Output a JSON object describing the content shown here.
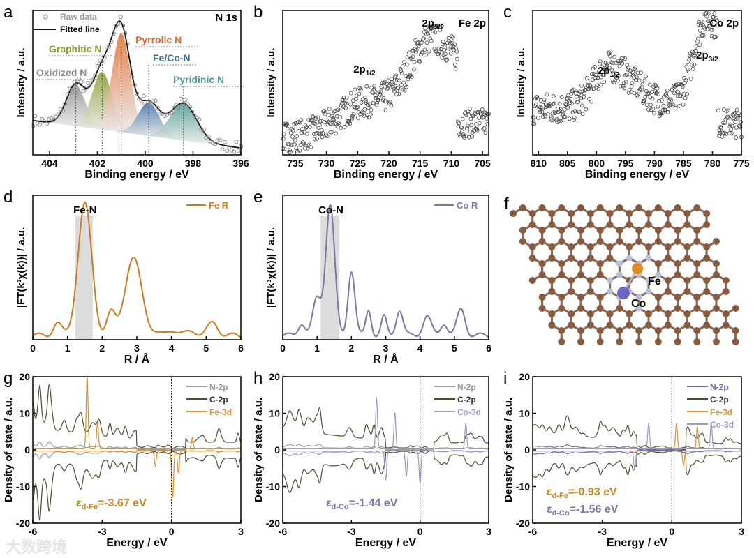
{
  "watermark": "大数跨境",
  "chart_data": [
    {
      "id": "a",
      "panel_label": "a",
      "type": "scatter",
      "title": "N 1s",
      "xlabel": "Binding energy / eV",
      "ylabel": "Intensity / a.u.",
      "xlim": [
        404.7,
        396
      ],
      "ylim": [
        -0.05,
        1.0
      ],
      "xticks": [
        404,
        402,
        400,
        398,
        396
      ],
      "legend": [
        "Raw data",
        "Fitted line"
      ],
      "legend_position": "top-left",
      "components": [
        {
          "name": "Oxidized N",
          "center": 402.9,
          "height": 0.3,
          "width": 0.4,
          "color": "#8c8c8c"
        },
        {
          "name": "Graphitic N",
          "center": 401.8,
          "height": 0.42,
          "width": 0.42,
          "color": "#8a9a2c"
        },
        {
          "name": "Pyrrolic N",
          "center": 401.0,
          "height": 0.72,
          "width": 0.38,
          "color": "#e06a2c"
        },
        {
          "name": "Fe/Co-N",
          "center": 399.85,
          "height": 0.24,
          "width": 0.45,
          "color": "#3d6fa8"
        },
        {
          "name": "Pyridinic N",
          "center": 398.4,
          "height": 0.27,
          "width": 0.55,
          "color": "#4a9a8c"
        }
      ],
      "baseline": [
        0.2,
        0.0
      ]
    },
    {
      "id": "b",
      "panel_label": "b",
      "type": "scatter",
      "title": "Fe 2p",
      "xlabel": "Binding energy / eV",
      "ylabel": "Intensity / a.u.",
      "xlim": [
        737,
        704
      ],
      "ylim": [
        0,
        1
      ],
      "xticks": [
        735,
        730,
        725,
        720,
        715,
        710,
        705
      ],
      "peaks": [
        {
          "label": "2p",
          "sub": "1/2",
          "center": 724,
          "height": 0.2,
          "width": 4
        },
        {
          "label": "2p",
          "sub": "3/2",
          "center": 713,
          "height": 0.55,
          "width": 3.5
        }
      ],
      "baseline": [
        0.12,
        0.22
      ],
      "cutoff": 709
    },
    {
      "id": "c",
      "panel_label": "c",
      "type": "scatter",
      "title": "Co 2p",
      "xlabel": "Binding energy / eV",
      "ylabel": "Intensity / a.u.",
      "xlim": [
        811,
        775
      ],
      "ylim": [
        0,
        1
      ],
      "xticks": [
        810,
        805,
        800,
        795,
        790,
        785,
        780,
        775
      ],
      "peaks": [
        {
          "label": "2p",
          "sub": "1/2",
          "center": 798,
          "height": 0.28,
          "width": 2.5
        },
        {
          "label": "2p",
          "sub": "3/2",
          "center": 781,
          "height": 0.6,
          "width": 2.2
        }
      ],
      "baseline": [
        0.32,
        0.35
      ],
      "cutoff": 779
    },
    {
      "id": "d",
      "panel_label": "d",
      "type": "line",
      "xlabel": "R / Å",
      "ylabel": "|FT(k³χ(k))| / a.u.",
      "xlim": [
        0,
        6
      ],
      "ylim": [
        0,
        1.1
      ],
      "xticks": [
        0,
        1,
        2,
        3,
        4,
        5,
        6
      ],
      "series": [
        {
          "name": "Fe R",
          "color": "#d07a1c"
        }
      ],
      "annotation": "Fe-N",
      "shaded_range": [
        1.23,
        1.73
      ],
      "peaks": [
        [
          0.7,
          0.1,
          0.12
        ],
        [
          1.5,
          1.0,
          0.2
        ],
        [
          2.25,
          0.16,
          0.12
        ],
        [
          2.9,
          0.58,
          0.25
        ],
        [
          4.0,
          0.05,
          0.15
        ],
        [
          4.6,
          0.04,
          0.15
        ],
        [
          5.2,
          0.1,
          0.15
        ]
      ]
    },
    {
      "id": "e",
      "panel_label": "e",
      "type": "line",
      "xlabel": "R / Å",
      "ylabel": "|FT(k³χ(k))| / a.u.",
      "xlim": [
        0,
        6
      ],
      "ylim": [
        0,
        1.1
      ],
      "xticks": [
        0,
        1,
        2,
        3,
        4,
        5,
        6
      ],
      "series": [
        {
          "name": "Co R",
          "color": "#7b78a8"
        }
      ],
      "annotation": "Co-N",
      "shaded_range": [
        1.1,
        1.65
      ],
      "peaks": [
        [
          0.55,
          0.1,
          0.1
        ],
        [
          1.0,
          0.28,
          0.12
        ],
        [
          1.38,
          1.0,
          0.13
        ],
        [
          2.0,
          0.5,
          0.1
        ],
        [
          2.5,
          0.2,
          0.08
        ],
        [
          2.95,
          0.14,
          0.08
        ],
        [
          3.4,
          0.2,
          0.1
        ],
        [
          4.2,
          0.15,
          0.12
        ],
        [
          4.7,
          0.1,
          0.1
        ],
        [
          5.2,
          0.2,
          0.12
        ]
      ]
    },
    {
      "id": "f",
      "panel_label": "f",
      "type": "structure",
      "atoms": [
        "Fe",
        "Co"
      ]
    },
    {
      "id": "g",
      "panel_label": "g",
      "type": "line",
      "xlabel": "Energy / eV",
      "ylabel": "Density of state / a.u.",
      "xlim": [
        -6,
        3
      ],
      "ylim": [
        -20,
        20
      ],
      "xticks": [
        -6,
        -3,
        0,
        3
      ],
      "yticks": [
        -20,
        -10,
        0,
        10,
        20
      ],
      "annotation": {
        "symbol": "ε",
        "sub": "d-Fe",
        "text": "=-3.67 eV",
        "color": "#c8861c"
      },
      "series": [
        {
          "name": "N-2p",
          "color": "#9a9a9a",
          "scale": 1.5
        },
        {
          "name": "C-2p",
          "color": "#4a5030",
          "scale": 12
        },
        {
          "name": "Fe-3d",
          "color": "#d89030",
          "scale": 0,
          "spikes": [
            [
              -3.65,
              20
            ],
            [
              -3.2,
              7
            ],
            [
              -0.7,
              -4
            ],
            [
              0.05,
              -13
            ],
            [
              0.3,
              -6
            ],
            [
              0.9,
              3
            ]
          ]
        }
      ]
    },
    {
      "id": "h",
      "panel_label": "h",
      "type": "line",
      "xlabel": "Energy / eV",
      "ylabel": "Density of state / a.u.",
      "xlim": [
        -6,
        3
      ],
      "ylim": [
        -20,
        20
      ],
      "xticks": [
        -6,
        -3,
        0,
        3
      ],
      "yticks": [
        -20,
        -10,
        0,
        10,
        20
      ],
      "annotation": {
        "symbol": "ε",
        "sub": "d-Co",
        "text": "=-1.44 eV",
        "color": "#7b78a8"
      },
      "series": [
        {
          "name": "N-2p",
          "color": "#9a9a9a",
          "scale": 1.5
        },
        {
          "name": "C-2p",
          "color": "#4a5030",
          "scale": 11
        },
        {
          "name": "Co-3d",
          "color": "#9a9ac0",
          "scale": 0,
          "spikes": [
            [
              -1.9,
              14
            ],
            [
              -1.1,
              10
            ],
            [
              -1.5,
              -8
            ],
            [
              -0.6,
              -7
            ],
            [
              0,
              -9
            ],
            [
              2,
              7
            ]
          ]
        }
      ]
    },
    {
      "id": "i",
      "panel_label": "i",
      "type": "line",
      "xlabel": "Energy / eV",
      "ylabel": "Density of state / a.u.",
      "xlim": [
        -6,
        3
      ],
      "ylim": [
        -20,
        20
      ],
      "xticks": [
        -6,
        -3,
        0,
        3
      ],
      "yticks": [
        -20,
        -10,
        0,
        10,
        20
      ],
      "annotations": [
        {
          "symbol": "ε",
          "sub": "d-Fe",
          "text": "=-0.93 eV",
          "color": "#c8861c"
        },
        {
          "symbol": "ε",
          "sub": "d-Co",
          "text": "=-1.56 eV",
          "color": "#7b78a8"
        }
      ],
      "series": [
        {
          "name": "N-2p",
          "color": "#6a6aa0",
          "scale": 1.5
        },
        {
          "name": "C-2p",
          "color": "#4a5030",
          "scale": 10
        },
        {
          "name": "Fe-3d",
          "color": "#d89030",
          "scale": 0,
          "spikes": [
            [
              0.2,
              7
            ],
            [
              1.1,
              6
            ],
            [
              0.5,
              -4
            ]
          ]
        },
        {
          "name": "Co-3d",
          "color": "#9a9ac0",
          "scale": 0,
          "spikes": [
            [
              -1,
              7
            ],
            [
              1.7,
              7
            ],
            [
              -1.6,
              -5
            ]
          ]
        }
      ]
    }
  ]
}
